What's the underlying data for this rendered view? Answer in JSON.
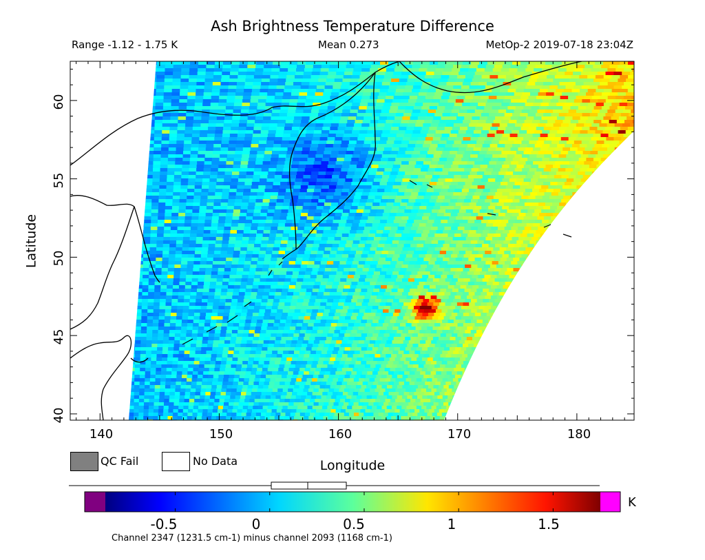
{
  "header": {
    "title": "Ash Brightness Temperature Difference",
    "range": "Range -1.12 - 1.75 K",
    "mean": "Mean 0.273",
    "satellite": "MetOp-2 2019-07-18 23:04Z"
  },
  "map": {
    "x_axis": {
      "label": "Longitude",
      "ticks": [
        "140",
        "150",
        "160",
        "170",
        "180"
      ],
      "range": [
        137.5,
        184.8
      ]
    },
    "y_axis": {
      "label": "Latitude",
      "ticks": [
        "40",
        "45",
        "50",
        "55",
        "60"
      ],
      "range": [
        39.6,
        62.5
      ]
    },
    "region": "Kamchatka / Sea of Okhotsk / Kuril Islands, NW Pacific",
    "swath_edge": "satellite swath with no-data areas west of ~143E and southeast of the curved east edge",
    "field_description": "mostly cyan-blue values near 0 to 0.3 K, darker blue over western Kamchatka / Sea of Okhotsk, rising to yellow-orange toward the east edge",
    "hotspot": {
      "lon": 167,
      "lat": 46.8,
      "value_k": 1.5,
      "color": "#e01818"
    }
  },
  "legend": {
    "qc_fail_label": "QC Fail",
    "qc_fail_color": "#808080",
    "no_data_label": "No Data",
    "no_data_color": "#ffffff"
  },
  "colorbar": {
    "ticks": [
      "-0.5",
      "0",
      "0.5",
      "1",
      "1.5"
    ],
    "tick_values": [
      -0.5,
      0,
      0.5,
      1,
      1.5
    ],
    "range": [
      -0.87,
      1.75
    ],
    "unit": "K",
    "under_color": "#800080",
    "over_color": "#ff00ff",
    "stats_box": {
      "min": -1.12,
      "low_quartile": 0.08,
      "median": 0.27,
      "high_quartile": 0.47,
      "max": 1.75
    },
    "caption": "Channel 2347 (1231.5 cm-1) minus channel 2093 (1168 cm-1)"
  }
}
